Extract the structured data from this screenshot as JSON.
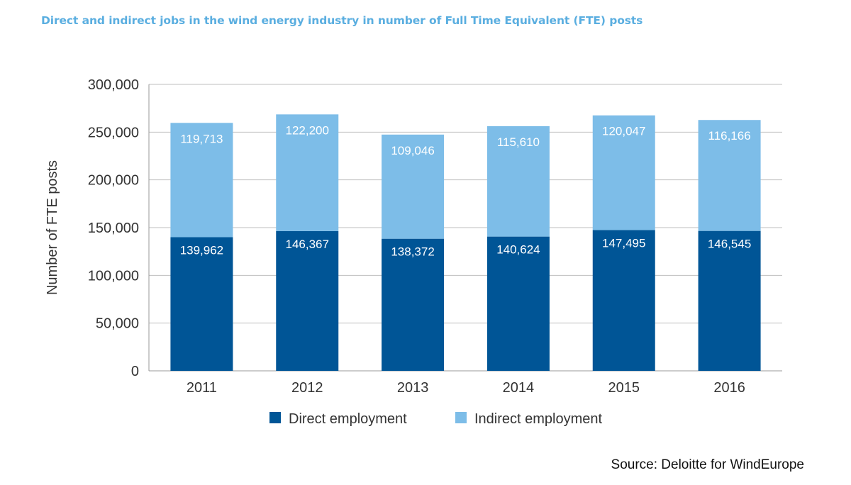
{
  "title": "Direct and indirect jobs in the wind energy industry in number of Full Time Equivalent (FTE) posts",
  "source": "Source: Deloitte for WindEurope",
  "colors": {
    "direct": "#005596",
    "indirect": "#7dbde8",
    "grid": "#bfbfbf",
    "axis_text": "#333333"
  },
  "chart_data": {
    "type": "bar",
    "stacked": true,
    "categories": [
      "2011",
      "2012",
      "2013",
      "2014",
      "2015",
      "2016"
    ],
    "series": [
      {
        "name": "Direct employment",
        "values": [
          139962,
          146367,
          138372,
          140624,
          147495,
          146545
        ],
        "labels": [
          "139,962",
          "146,367",
          "138,372",
          "140,624",
          "147,495",
          "146,545"
        ]
      },
      {
        "name": "Indirect employment",
        "values": [
          119713,
          122200,
          109046,
          115610,
          120047,
          116166
        ],
        "labels": [
          "119,713",
          "122,200",
          "109,046",
          "115,610",
          "120,047",
          "116,166"
        ]
      }
    ],
    "ylabel": "Number of FTE posts",
    "xlabel": "",
    "ylim": [
      0,
      300000
    ],
    "yticks": [
      0,
      50000,
      100000,
      150000,
      200000,
      250000,
      300000
    ],
    "ytick_labels": [
      "0",
      "50,000",
      "100,000",
      "150,000",
      "200,000",
      "250,000",
      "300,000"
    ],
    "grid": true,
    "legend": "bottom"
  }
}
